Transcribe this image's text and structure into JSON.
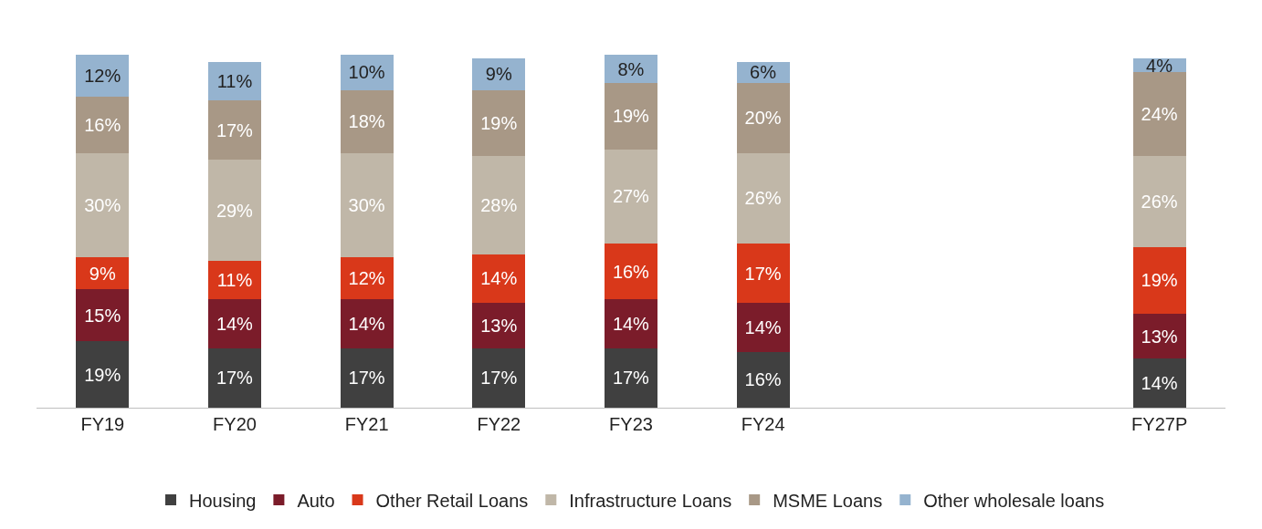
{
  "chart_data": {
    "type": "bar",
    "stacked": true,
    "categories": [
      "FY19",
      "FY20",
      "FY21",
      "FY22",
      "FY23",
      "FY24",
      null,
      null,
      "FY27P"
    ],
    "series": [
      {
        "name": "Housing",
        "color": "#404040",
        "values": [
          19,
          17,
          17,
          17,
          17,
          16,
          null,
          null,
          14
        ],
        "value_labels": [
          "19%",
          "17%",
          "17%",
          "17%",
          "17%",
          "16%",
          null,
          null,
          "14%"
        ]
      },
      {
        "name": "Auto",
        "color": "#7b1c2a",
        "values": [
          15,
          14,
          14,
          13,
          14,
          14,
          null,
          null,
          13
        ],
        "value_labels": [
          "15%",
          "14%",
          "14%",
          "13%",
          "14%",
          "14%",
          null,
          null,
          "13%"
        ]
      },
      {
        "name": "Other Retail Loans",
        "color": "#d9381a",
        "values": [
          9,
          11,
          12,
          14,
          16,
          17,
          null,
          null,
          19
        ],
        "value_labels": [
          "9%",
          "11%",
          "12%",
          "14%",
          "16%",
          "17%",
          null,
          null,
          "19%"
        ]
      },
      {
        "name": "Infrastructure Loans",
        "color": "#c0b7a8",
        "values": [
          30,
          29,
          30,
          28,
          27,
          26,
          null,
          null,
          26
        ],
        "value_labels": [
          "30%",
          "29%",
          "30%",
          "28%",
          "27%",
          "26%",
          null,
          null,
          "26%"
        ]
      },
      {
        "name": "MSME Loans",
        "color": "#a89886",
        "values": [
          16,
          17,
          18,
          19,
          19,
          20,
          null,
          null,
          24
        ],
        "value_labels": [
          "16%",
          "17%",
          "18%",
          "19%",
          "19%",
          "20%",
          null,
          null,
          "24%"
        ]
      },
      {
        "name": "Other wholesale loans",
        "color": "#95b3cf",
        "values": [
          12,
          11,
          10,
          9,
          8,
          6,
          null,
          null,
          4
        ],
        "value_labels": [
          "12%",
          "11%",
          "10%",
          "9%",
          "8%",
          "6%",
          null,
          null,
          "4%"
        ]
      }
    ],
    "legend": "bottom"
  }
}
